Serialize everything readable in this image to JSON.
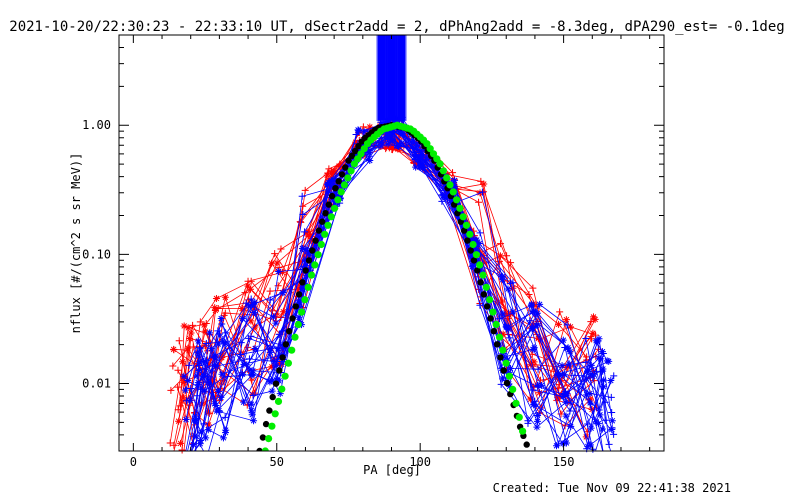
{
  "chart_data": {
    "type": "line",
    "title": "2021-10-20/22:30:23 - 22:33:10 UT, dSectr2add = 2, dPhAng2add = -8.3deg, dPA290_est= -0.1deg",
    "xlabel": "PA [deg]",
    "ylabel": "nflux [#/(cm^2 s sr MeV)]",
    "xlim": [
      -5,
      185
    ],
    "ylim": [
      0.003,
      5.0
    ],
    "yscale": "log",
    "xticks": [
      0,
      50,
      100,
      150
    ],
    "xtick_labels": [
      "0",
      "50",
      "100",
      "150"
    ],
    "yticks": [
      1.0,
      0.1,
      0.01
    ],
    "ytick_labels": [
      "1.00",
      "0.10",
      "0.01"
    ],
    "footer": "Created: Tue Nov 09 22:41:38 2021",
    "series": [
      {
        "name": "red-traces",
        "color": "#ff0000",
        "marker": "star/plus",
        "x": [
          15,
          20,
          25,
          30,
          40,
          50,
          60,
          70,
          80,
          88,
          92,
          100,
          110,
          120,
          130,
          140,
          150,
          160
        ],
        "values": [
          0.008,
          0.009,
          0.012,
          0.016,
          0.02,
          0.035,
          0.12,
          0.38,
          0.75,
          0.85,
          0.85,
          0.62,
          0.35,
          0.13,
          0.04,
          0.018,
          0.014,
          0.011
        ]
      },
      {
        "name": "blue-traces",
        "color": "#0000ff",
        "marker": "plus/star",
        "x": [
          20,
          25,
          30,
          40,
          50,
          60,
          70,
          80,
          88,
          92,
          100,
          110,
          120,
          130,
          140,
          150,
          160,
          165
        ],
        "values": [
          0.006,
          0.008,
          0.011,
          0.016,
          0.025,
          0.09,
          0.3,
          0.7,
          0.9,
          0.9,
          0.6,
          0.32,
          0.1,
          0.03,
          0.014,
          0.01,
          0.008,
          0.006
        ]
      },
      {
        "name": "black-fit",
        "color": "#000000",
        "marker": "filled-circle",
        "x": [
          44,
          50,
          55,
          60,
          65,
          70,
          75,
          80,
          85,
          90,
          95,
          100,
          105,
          110,
          115,
          120,
          125,
          130,
          135,
          138
        ],
        "values": [
          0.003,
          0.0105,
          0.029,
          0.074,
          0.16,
          0.31,
          0.53,
          0.77,
          0.95,
          1.0,
          0.95,
          0.77,
          0.53,
          0.31,
          0.16,
          0.074,
          0.029,
          0.0105,
          0.0045,
          0.003
        ]
      },
      {
        "name": "green-fit",
        "color": "#00ee00",
        "marker": "filled-circle",
        "x": [
          46,
          52,
          57,
          62,
          67,
          72,
          77,
          82,
          87,
          92,
          97,
          102,
          107,
          112,
          117,
          122,
          127,
          132,
          136
        ],
        "values": [
          0.003,
          0.0095,
          0.026,
          0.068,
          0.15,
          0.29,
          0.5,
          0.74,
          0.93,
          1.0,
          0.93,
          0.74,
          0.5,
          0.29,
          0.15,
          0.068,
          0.026,
          0.0095,
          0.004
        ]
      }
    ],
    "vertical_bars": {
      "color": "#0000ff",
      "x_range": [
        85,
        95
      ],
      "y_range": [
        1.08,
        5.0
      ],
      "count": 16
    }
  }
}
